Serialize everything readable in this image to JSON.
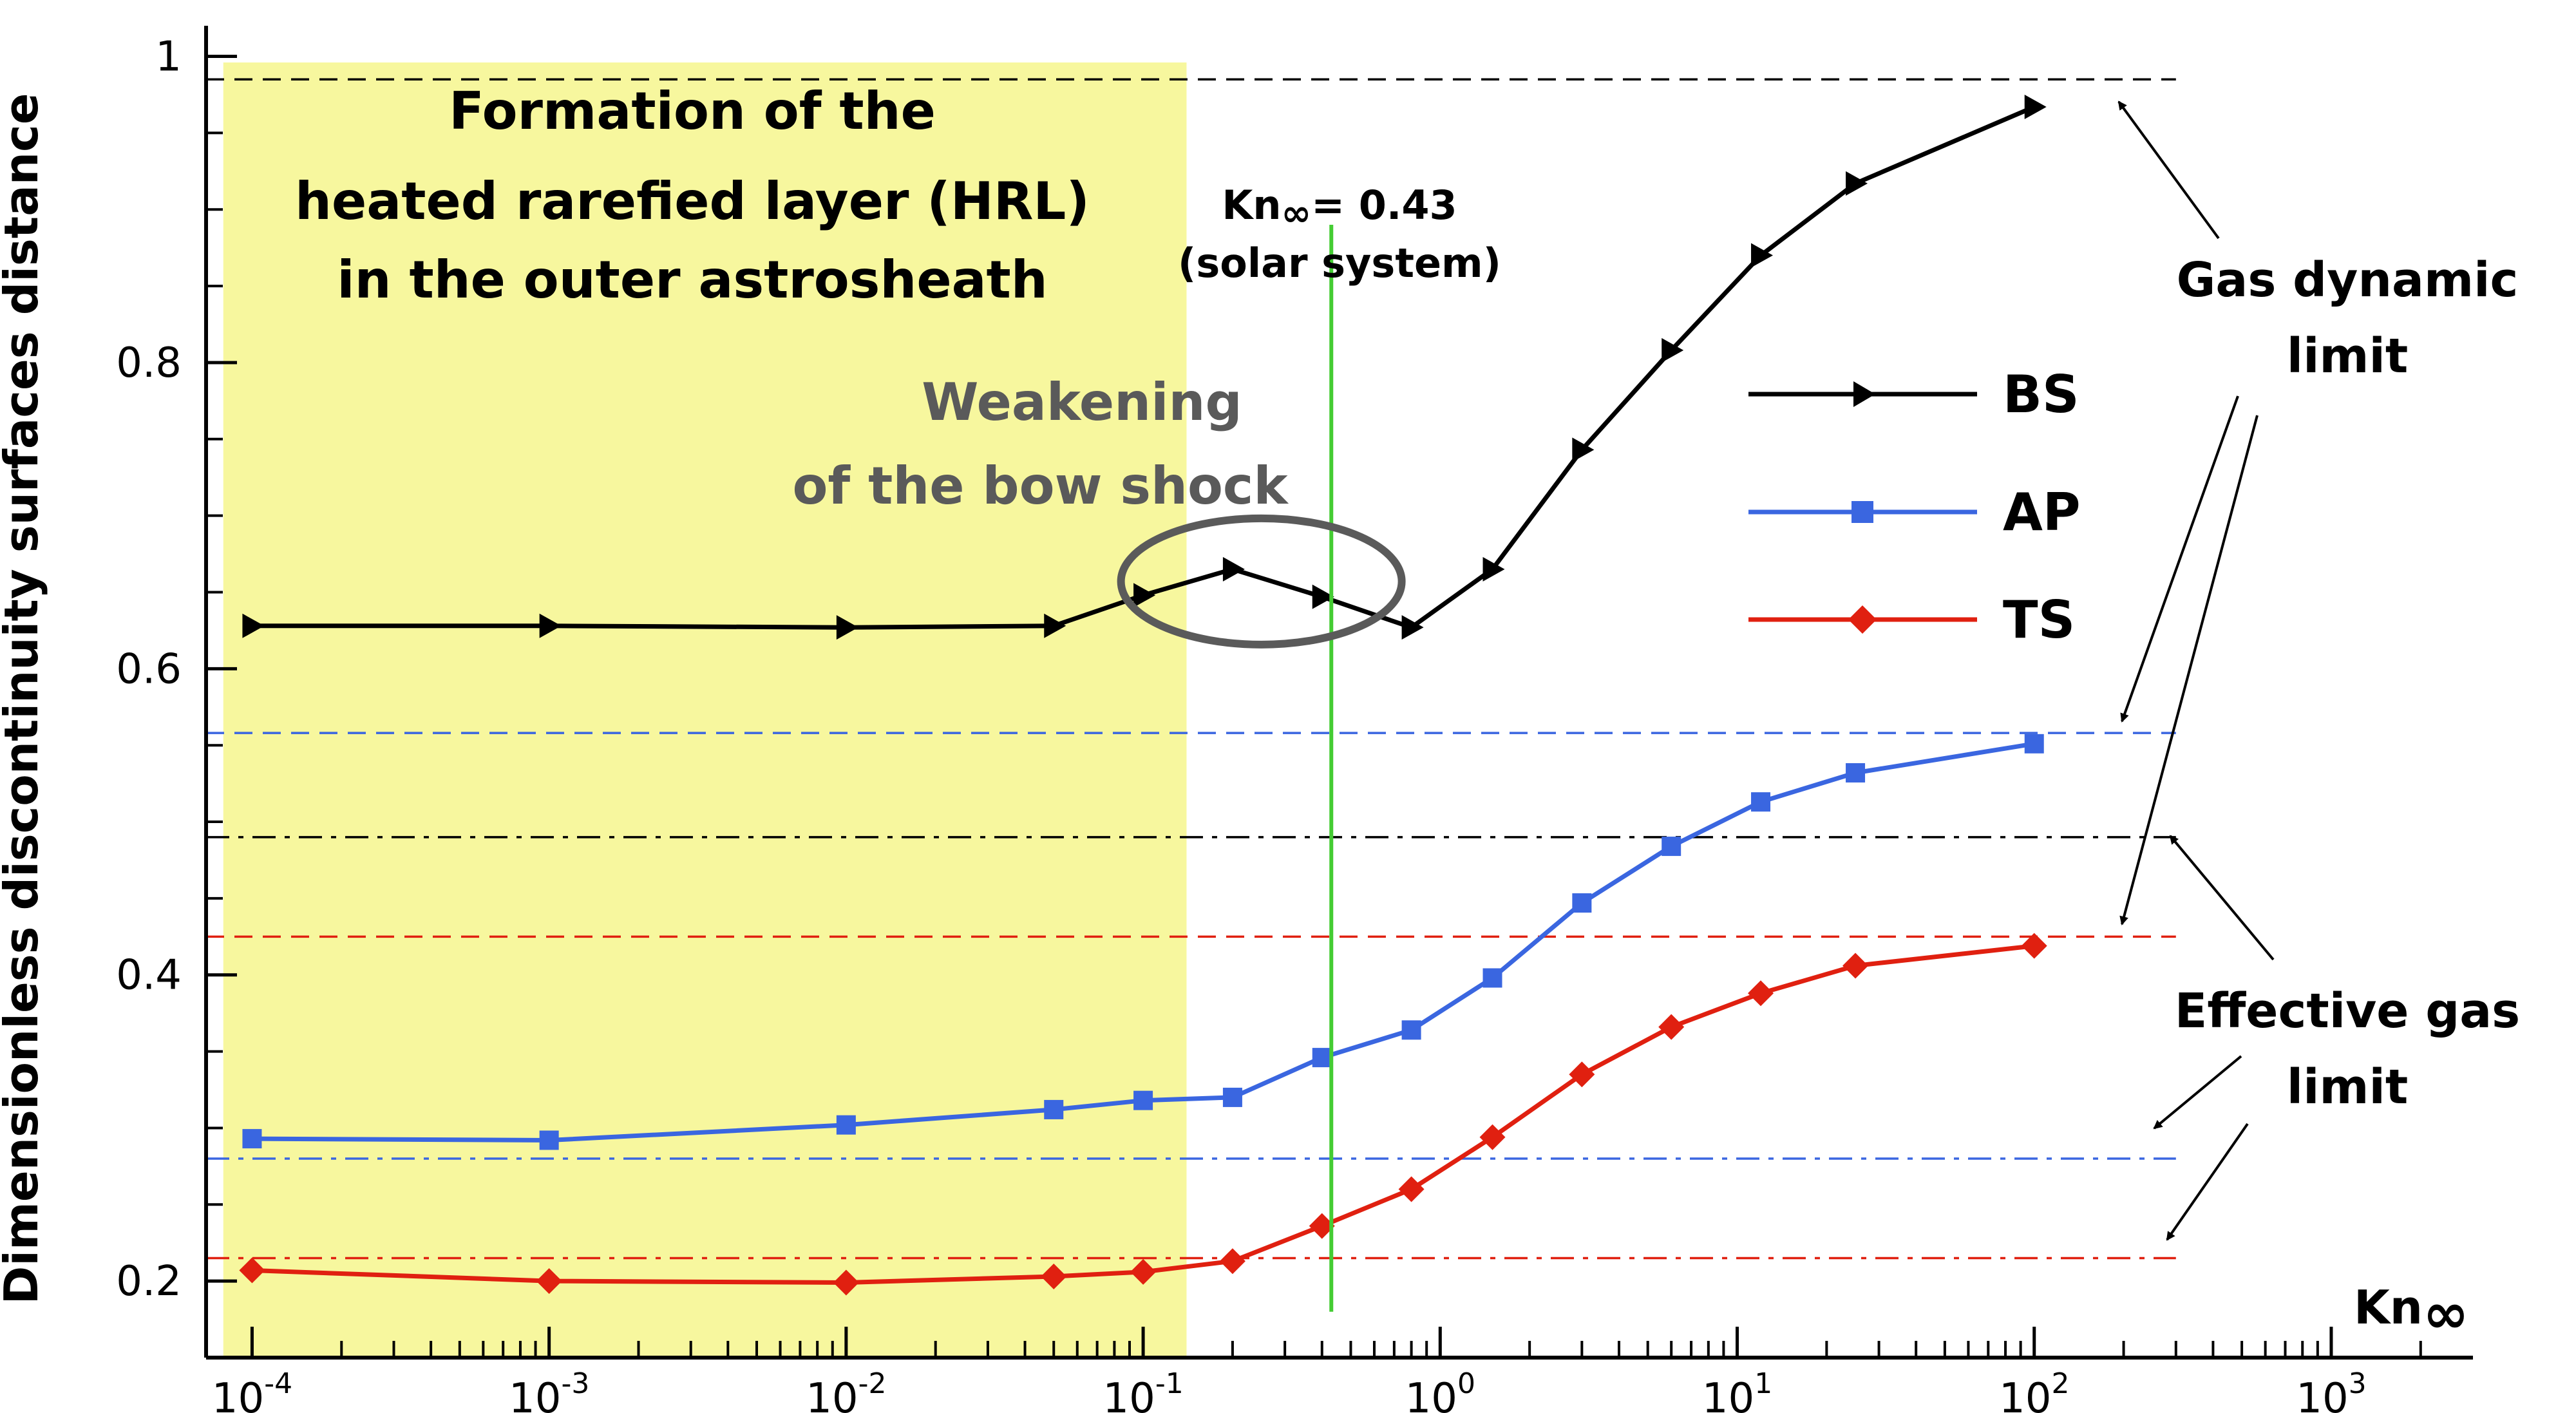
{
  "chart_data": {
    "type": "line",
    "ylabel": "Dimensionless discontinuity surfaces distance",
    "xlabel_base": "Kn",
    "xlabel_sub": "∞",
    "x_scale": "log",
    "xlim": [
      7e-05,
      3000
    ],
    "ylim": [
      0.15,
      1.02
    ],
    "x_ticks": [
      {
        "value": 0.0001,
        "base": "10",
        "exp": "-4"
      },
      {
        "value": 0.001,
        "base": "10",
        "exp": "-3"
      },
      {
        "value": 0.01,
        "base": "10",
        "exp": "-2"
      },
      {
        "value": 0.1,
        "base": "10",
        "exp": "-1"
      },
      {
        "value": 1,
        "base": "10",
        "exp": "0"
      },
      {
        "value": 10,
        "base": "10",
        "exp": "1"
      },
      {
        "value": 100,
        "base": "10",
        "exp": "2"
      },
      {
        "value": 1000,
        "base": "10",
        "exp": "3"
      }
    ],
    "y_ticks": [
      {
        "value": 0.2,
        "label": "0.2"
      },
      {
        "value": 0.4,
        "label": "0.4"
      },
      {
        "value": 0.6,
        "label": "0.6"
      },
      {
        "value": 0.8,
        "label": "0.8"
      },
      {
        "value": 1.0,
        "label": "1"
      }
    ],
    "series": [
      {
        "name": "BS",
        "color": "#000000",
        "marker": "triangle-right",
        "x": [
          0.0001,
          0.001,
          0.01,
          0.05,
          0.1,
          0.2,
          0.4,
          0.8,
          1.5,
          3,
          6,
          12,
          25,
          100
        ],
        "y": [
          0.628,
          0.628,
          0.627,
          0.628,
          0.648,
          0.665,
          0.647,
          0.627,
          0.665,
          0.743,
          0.808,
          0.87,
          0.917,
          0.967
        ]
      },
      {
        "name": "AP",
        "color": "#3a66e0",
        "marker": "square",
        "x": [
          0.0001,
          0.001,
          0.01,
          0.05,
          0.1,
          0.2,
          0.4,
          0.8,
          1.5,
          3,
          6,
          12,
          25,
          100
        ],
        "y": [
          0.293,
          0.292,
          0.302,
          0.312,
          0.318,
          0.32,
          0.346,
          0.364,
          0.398,
          0.447,
          0.484,
          0.513,
          0.532,
          0.551
        ]
      },
      {
        "name": "TS",
        "color": "#e02010",
        "marker": "diamond",
        "x": [
          0.0001,
          0.001,
          0.01,
          0.05,
          0.1,
          0.2,
          0.4,
          0.8,
          1.5,
          3,
          6,
          12,
          25,
          100
        ],
        "y": [
          0.207,
          0.2,
          0.199,
          0.203,
          0.206,
          0.213,
          0.236,
          0.26,
          0.294,
          0.335,
          0.366,
          0.388,
          0.406,
          0.419
        ]
      }
    ],
    "reference_lines": [
      {
        "group": "Gas dynamic limit",
        "series": "BS",
        "y": 0.985,
        "style": "dashed",
        "color": "#000000"
      },
      {
        "group": "Gas dynamic limit",
        "series": "AP",
        "y": 0.558,
        "style": "dashed",
        "color": "#3a66e0"
      },
      {
        "group": "Gas dynamic limit",
        "series": "TS",
        "y": 0.425,
        "style": "dashed",
        "color": "#e02010"
      },
      {
        "group": "Effective gas limit",
        "series": "BS",
        "y": 0.49,
        "style": "dashdot",
        "color": "#000000"
      },
      {
        "group": "Effective gas limit",
        "series": "AP",
        "y": 0.28,
        "style": "dashdot",
        "color": "#3a66e0"
      },
      {
        "group": "Effective gas limit",
        "series": "TS",
        "y": 0.215,
        "style": "dashdot",
        "color": "#e02010"
      }
    ],
    "reference_x_end": 300,
    "highlight_region": {
      "x_from": 8e-05,
      "x_to": 0.14,
      "color": "#f7f79e"
    },
    "vertical_marker": {
      "x": 0.43,
      "y_from": 0.18,
      "y_to": 0.89,
      "color": "#44cc33"
    },
    "circle_highlight": {
      "x_center": 0.25,
      "y_center": 0.657,
      "color": "#5a5a5a"
    },
    "legend": {
      "placement": "right-center"
    },
    "annotations": {
      "hrl_lines": [
        "Formation of the",
        "heated rarefied layer (HRL)",
        "in the outer astrosheath"
      ],
      "weakening_lines": [
        "Weakening",
        "of the bow shock"
      ],
      "kn_main": "Kn",
      "kn_sub": "∞",
      "kn_value": "= 0.43",
      "solar_system": "(solar system)",
      "gas_dynamic_lines": [
        "Gas dynamic",
        "limit"
      ],
      "effective_gas_lines": [
        "Effective gas",
        "limit"
      ]
    },
    "colors": {
      "grey_text": "#5a5a5a",
      "axis": "#000000"
    }
  }
}
